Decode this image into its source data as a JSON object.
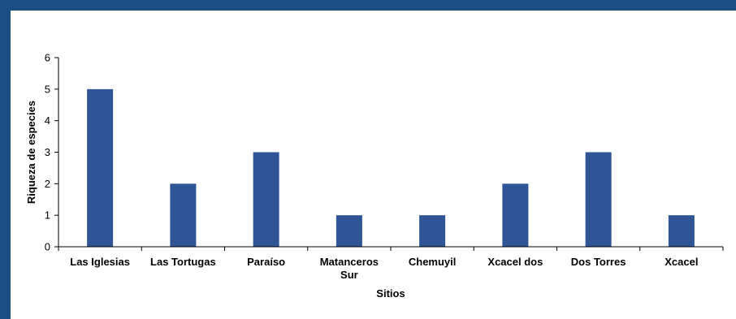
{
  "colors": {
    "frame": "#1c4e86",
    "bar": "#2f5597",
    "axis": "#000000"
  },
  "chart_data": {
    "type": "bar",
    "categories": [
      [
        "Las Iglesias"
      ],
      [
        "Las Tortugas"
      ],
      [
        "Paraíso"
      ],
      [
        "Matanceros",
        "Sur"
      ],
      [
        "Chemuyil"
      ],
      [
        "Xcacel dos"
      ],
      [
        "Dos Torres"
      ],
      [
        "Xcacel"
      ]
    ],
    "values": [
      5,
      2,
      3,
      1,
      1,
      2,
      3,
      1
    ],
    "yticks": [
      "0",
      "1",
      "2",
      "3",
      "4",
      "5",
      "6"
    ],
    "title": "",
    "xlabel": "Sitios",
    "ylabel": "Riqueza de especies",
    "ylim": [
      0,
      6
    ],
    "grid": false,
    "legend": "none"
  }
}
